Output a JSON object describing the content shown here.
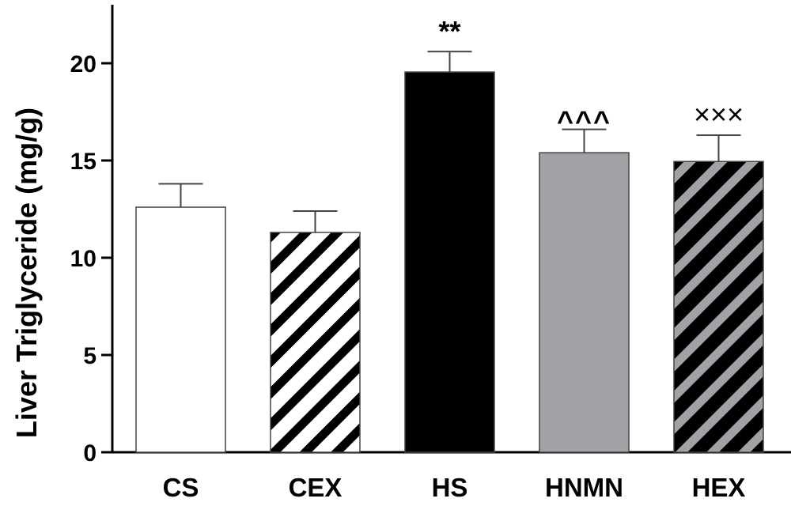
{
  "chart_data": {
    "type": "bar",
    "title": "",
    "xlabel": "",
    "ylabel": "Liver Triglyceride (mg/g)",
    "ylim": [
      0,
      23
    ],
    "yticks": [
      0,
      5,
      10,
      15,
      20
    ],
    "grid": false,
    "legend": null,
    "categories": [
      "CS",
      "CEX",
      "HS",
      "HNMN",
      "HEX"
    ],
    "values": [
      12.6,
      11.3,
      19.55,
      15.4,
      14.95
    ],
    "error_upper": [
      13.8,
      12.4,
      20.6,
      16.6,
      16.3
    ],
    "fills": [
      {
        "base": "#ffffff",
        "stripe": null
      },
      {
        "base": "#ffffff",
        "stripe": "#000000"
      },
      {
        "base": "#000000",
        "stripe": null
      },
      {
        "base": "#a2a2a6",
        "stripe": null
      },
      {
        "base": "#000000",
        "stripe": "#a2a2a6"
      }
    ],
    "annotations": [
      "",
      "",
      "**",
      "^^^",
      "×××"
    ]
  }
}
